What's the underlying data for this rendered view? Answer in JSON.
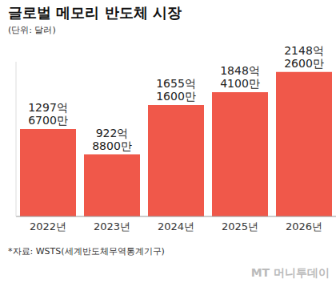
{
  "chart_data": {
    "type": "bar",
    "title": "글로벌 메모리 반도체 시장",
    "subtitle": "(단위: 달러)",
    "categories": [
      "2022년",
      "2023년",
      "2024년",
      "2025년",
      "2026년"
    ],
    "values": [
      129767000000,
      92288000000,
      165516000000,
      184841000000,
      214826000000
    ],
    "value_labels": [
      "1297억 6700만",
      "922억 8800만",
      "1655억 1600만",
      "1848억 4100만",
      "2148억 2600만"
    ],
    "color": "#f0584a",
    "ylim": [
      0,
      230000000000
    ],
    "grid": false,
    "data_labels": true,
    "tick_labels": "x",
    "source": "*자료: WSTS(세계반도체무역통계기구)",
    "watermark": "MT 머니투데이"
  }
}
